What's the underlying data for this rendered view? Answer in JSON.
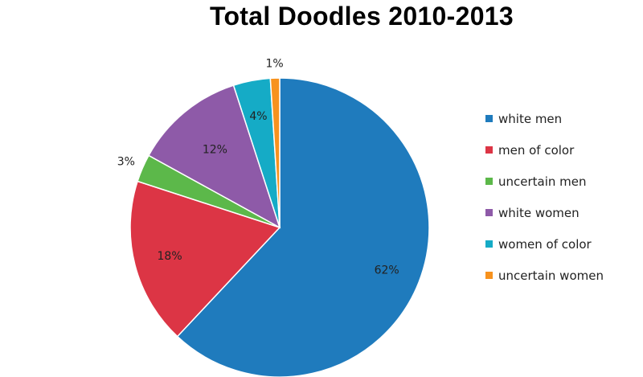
{
  "chart_data": {
    "type": "pie",
    "title": "Total Doodles 2010-2013",
    "categories": [
      "white men",
      "men of color",
      "uncertain men",
      "white women",
      "women of color",
      "uncertain women"
    ],
    "values": [
      62,
      18,
      3,
      12,
      4,
      1
    ],
    "data_labels": [
      "62%",
      "18%",
      "3%",
      "12%",
      "4%",
      "1%"
    ],
    "colors": [
      "#1f7bbd",
      "#dc3545",
      "#5cb84a",
      "#8e5aa8",
      "#15abc6",
      "#f7921e"
    ],
    "start_angle_deg": 0,
    "direction": "clockwise",
    "legend_position": "right"
  }
}
